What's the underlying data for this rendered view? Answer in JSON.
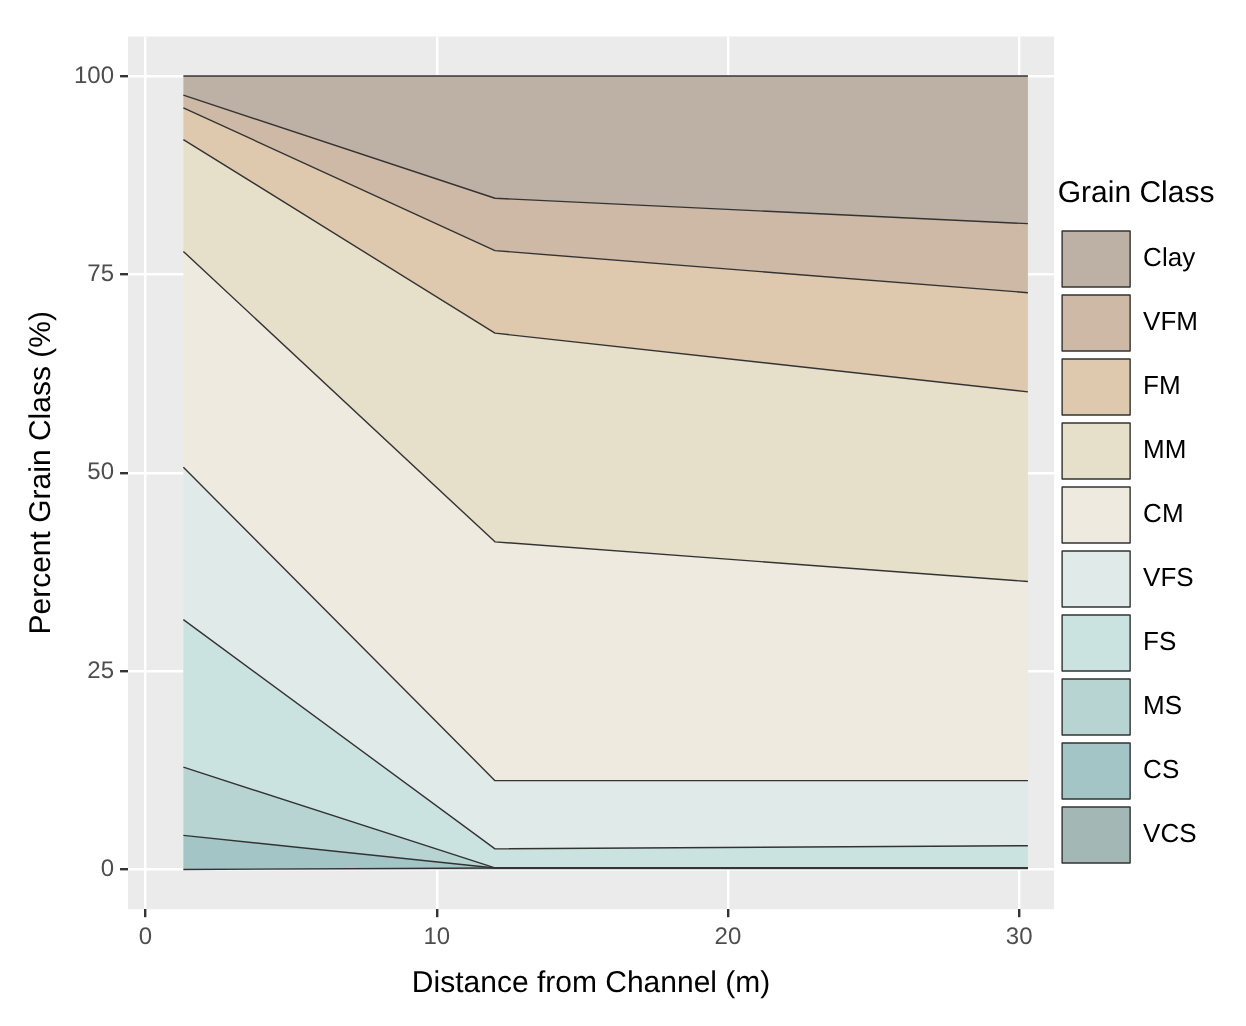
{
  "chart_data": {
    "type": "area",
    "stacked": true,
    "xlabel": "Distance from Channel (m)",
    "ylabel": "Percent Grain Class (%)",
    "legend_title": "Grain Class",
    "legend": "right",
    "grid": true,
    "marker": "none",
    "x": [
      1.3,
      12,
      30.3
    ],
    "xlim": [
      -0.6,
      31.2
    ],
    "xticks": [
      0,
      10,
      20,
      30
    ],
    "ylim": [
      -5,
      105
    ],
    "yticks": [
      0,
      25,
      50,
      75,
      100
    ],
    "series": [
      {
        "name": "VCS",
        "color": "#a3b8b5",
        "values": [
          0,
          0.2,
          0.2
        ]
      },
      {
        "name": "CS",
        "color": "#a3c5c5",
        "values": [
          4.3,
          0,
          0
        ]
      },
      {
        "name": "MS",
        "color": "#b7d4d3",
        "values": [
          8.6,
          0,
          0
        ]
      },
      {
        "name": "FS",
        "color": "#cbe3e0",
        "values": [
          18.6,
          2.4,
          2.8
        ]
      },
      {
        "name": "VFS",
        "color": "#e0eae9",
        "values": [
          19.2,
          8.6,
          8.2
        ]
      },
      {
        "name": "CM",
        "color": "#efeae0",
        "values": [
          27.2,
          30.1,
          25.1
        ]
      },
      {
        "name": "MM",
        "color": "#e6dfca",
        "values": [
          14.1,
          26.3,
          23.9
        ]
      },
      {
        "name": "FM",
        "color": "#dfc9ae",
        "values": [
          4.0,
          10.4,
          12.5
        ]
      },
      {
        "name": "VFM",
        "color": "#cdb9a5",
        "values": [
          1.6,
          6.6,
          8.7
        ]
      },
      {
        "name": "Clay",
        "color": "#bdb1a5",
        "values": [
          2.4,
          15.4,
          18.6
        ]
      }
    ]
  }
}
